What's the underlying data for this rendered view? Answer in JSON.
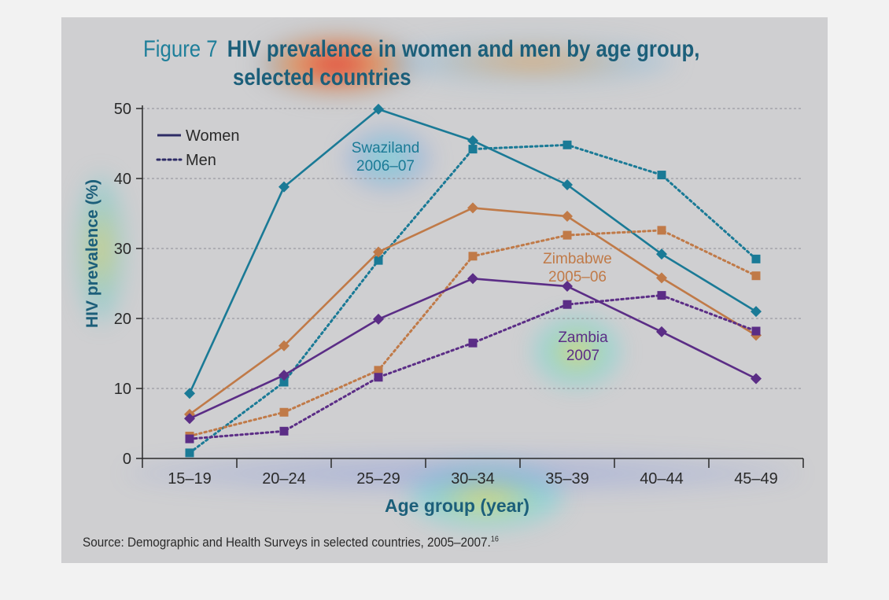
{
  "figure": {
    "label": "Figure 7",
    "title_line1": "HIV prevalence in women and men by age group,",
    "title_line2": "selected countries"
  },
  "source": {
    "text": "Source: Demographic and Health Surveys in selected countries, 2005–2007.",
    "footnote": "16"
  },
  "colors": {
    "swaziland": "#1a7a96",
    "zimbabwe": "#c07a48",
    "zambia": "#5b2d86",
    "legend_line": "#2e2c66",
    "panel": "#cfcfd1",
    "axis_text": "#1c5f7a"
  },
  "chart_data": {
    "type": "line",
    "title": "HIV prevalence in women and men by age group, selected countries",
    "xlabel": "Age group (year)",
    "ylabel": "HIV prevalence (%)",
    "categories": [
      "15–19",
      "20–24",
      "25–29",
      "30–34",
      "35–39",
      "40–44",
      "45–49"
    ],
    "yticks": [
      0,
      10,
      20,
      30,
      40,
      50
    ],
    "ylim": [
      0,
      50
    ],
    "grid": "horizontal dotted",
    "legend": {
      "position": "top-left",
      "entries": [
        {
          "label": "Women",
          "style": "solid"
        },
        {
          "label": "Men",
          "style": "dotted"
        }
      ]
    },
    "annotations": [
      {
        "text": "Swaziland 2006–07",
        "line1": "Swaziland",
        "line2": "2006–07",
        "color": "#1a7a96"
      },
      {
        "text": "Zimbabwe 2005–06",
        "line1": "Zimbabwe",
        "line2": "2005–06",
        "color": "#c07a48"
      },
      {
        "text": "Zambia 2007",
        "line1": "Zambia",
        "line2": "2007",
        "color": "#5b2d86"
      }
    ],
    "series": [
      {
        "country": "Swaziland",
        "sex": "Women",
        "style": "solid",
        "marker": "diamond",
        "color": "#1a7a96",
        "values": [
          9.3,
          38.8,
          49.9,
          45.4,
          39.1,
          29.2,
          21.0
        ]
      },
      {
        "country": "Swaziland",
        "sex": "Men",
        "style": "dotted",
        "marker": "square",
        "color": "#1a7a96",
        "values": [
          0.8,
          10.9,
          28.3,
          44.2,
          44.8,
          40.5,
          28.5
        ]
      },
      {
        "country": "Zimbabwe",
        "sex": "Women",
        "style": "solid",
        "marker": "diamond",
        "color": "#c07a48",
        "values": [
          6.3,
          16.1,
          29.5,
          35.8,
          34.6,
          25.8,
          17.6
        ]
      },
      {
        "country": "Zimbabwe",
        "sex": "Men",
        "style": "dotted",
        "marker": "square",
        "color": "#c07a48",
        "values": [
          3.2,
          6.6,
          12.6,
          28.9,
          31.9,
          32.6,
          26.1
        ]
      },
      {
        "country": "Zambia",
        "sex": "Women",
        "style": "solid",
        "marker": "diamond",
        "color": "#5b2d86",
        "values": [
          5.7,
          11.9,
          19.9,
          25.7,
          24.6,
          18.1,
          11.4
        ]
      },
      {
        "country": "Zambia",
        "sex": "Men",
        "style": "dotted",
        "marker": "square",
        "color": "#5b2d86",
        "values": [
          2.8,
          3.9,
          11.6,
          16.5,
          22.0,
          23.3,
          18.2
        ]
      }
    ]
  }
}
